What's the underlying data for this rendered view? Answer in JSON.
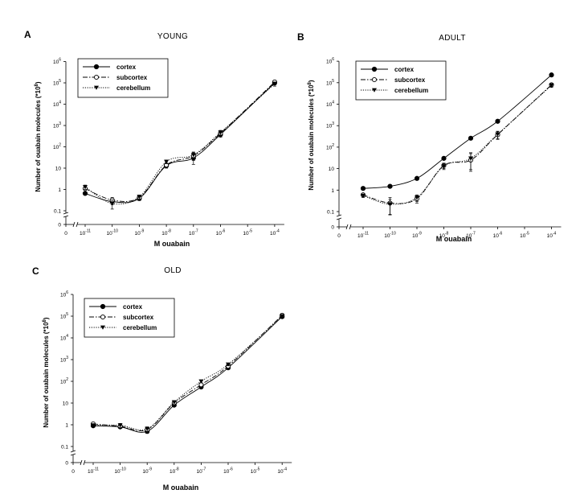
{
  "chart_data": [
    {
      "panel": "A",
      "title": "YOUNG",
      "type": "line",
      "xlabel": "M ouabain",
      "ylabel": "Number of ouabain molecules (*10^8)",
      "x_ticks": [
        "0",
        "10^-11",
        "10^-10",
        "10^-9",
        "10^-8",
        "10^-7",
        "10^-6",
        "10^-5",
        "10^-4"
      ],
      "y_ticks": [
        "0",
        "0.1",
        "1",
        "10",
        "10^2",
        "10^3",
        "10^4",
        "10^5",
        "10^6"
      ],
      "x_scale": "log10",
      "y_scale": "log10",
      "axis_break": true,
      "legend_position": "top-left",
      "series": [
        {
          "name": "cortex",
          "marker": "filled-circle",
          "dash": "solid",
          "x": [
            1e-11,
            1e-10,
            1e-09,
            1e-08,
            1e-07,
            1e-06,
            0.0001
          ],
          "y": [
            0.65,
            0.27,
            0.38,
            13,
            30,
            380,
            100000
          ],
          "err": [
            0.1,
            0.08,
            0.08,
            3,
            15,
            100,
            20000
          ]
        },
        {
          "name": "subcortex",
          "marker": "open-circle",
          "dash": "dash",
          "x": [
            1e-11,
            1e-10,
            1e-09,
            1e-08,
            1e-07,
            1e-06,
            0.0001
          ],
          "y": [
            1.1,
            0.32,
            0.42,
            14,
            38,
            430,
            110000
          ],
          "err": [
            0.2,
            0.1,
            0.1,
            3,
            15,
            120,
            20000
          ]
        },
        {
          "name": "cerebellum",
          "marker": "filled-triangle-down",
          "dash": "dot",
          "x": [
            1e-11,
            1e-10,
            1e-09,
            1e-08,
            1e-07,
            1e-06,
            0.0001
          ],
          "y": [
            1.3,
            0.22,
            0.45,
            20,
            42,
            470,
            90000
          ],
          "err": [
            0.3,
            0.1,
            0.1,
            4,
            15,
            120,
            20000
          ]
        }
      ]
    },
    {
      "panel": "B",
      "title": "ADULT",
      "type": "line",
      "xlabel": "M ouabain",
      "ylabel": "Number of ouabain molecules (*10^8)",
      "x_ticks": [
        "0",
        "10^-11",
        "10^-10",
        "10^-9",
        "10^-8",
        "10^-7",
        "10^-6",
        "10^-5",
        "10^-4"
      ],
      "y_ticks": [
        "0",
        "0.1",
        "1",
        "10",
        "10^2",
        "10^3",
        "10^4",
        "10^5",
        "10^6"
      ],
      "x_scale": "log10",
      "y_scale": "log10",
      "axis_break": true,
      "legend_position": "top-left",
      "series": [
        {
          "name": "cortex",
          "marker": "filled-circle",
          "dash": "solid",
          "x": [
            1e-11,
            1e-10,
            1e-09,
            1e-08,
            1e-07,
            1e-06,
            0.0001
          ],
          "y": [
            1.2,
            1.5,
            3.5,
            30,
            260,
            1600,
            230000
          ],
          "err": [
            0.1,
            0.1,
            0.3,
            3,
            30,
            200,
            20000
          ]
        },
        {
          "name": "subcortex",
          "marker": "open-circle",
          "dash": "dash",
          "x": [
            1e-11,
            1e-10,
            1e-09,
            1e-08,
            1e-07,
            1e-06,
            0.0001
          ],
          "y": [
            0.6,
            0.25,
            0.4,
            14,
            25,
            380,
            80000
          ],
          "err": [
            0.1,
            0.2,
            0.15,
            4,
            25,
            150,
            15000
          ]
        },
        {
          "name": "cerebellum",
          "marker": "filled-triangle-down",
          "dash": "dot",
          "x": [
            1e-11,
            1e-10,
            1e-09,
            1e-08,
            1e-07,
            1e-06,
            0.0001
          ],
          "y": [
            0.55,
            0.22,
            0.45,
            13,
            30,
            400,
            75000
          ],
          "err": [
            0.1,
            0.15,
            0.15,
            4,
            25,
            150,
            15000
          ]
        }
      ]
    },
    {
      "panel": "C",
      "title": "OLD",
      "type": "line",
      "xlabel": "M ouabain",
      "ylabel": "Number of ouabain molecules (*10^8)",
      "x_ticks": [
        "0",
        "10^-11",
        "10^-10",
        "10^-9",
        "10^-8",
        "10^-7",
        "10^-6",
        "10^-5",
        "10^-4"
      ],
      "y_ticks": [
        "0",
        "0.1",
        "1",
        "10",
        "10^2",
        "10^3",
        "10^4",
        "10^5",
        "10^6"
      ],
      "x_scale": "log10",
      "y_scale": "log10",
      "axis_break": true,
      "legend_position": "top-left",
      "series": [
        {
          "name": "cortex",
          "marker": "filled-circle",
          "dash": "solid",
          "x": [
            1e-11,
            1e-10,
            1e-09,
            1e-08,
            1e-07,
            1e-06,
            0.0001
          ],
          "y": [
            0.9,
            0.8,
            0.5,
            8,
            55,
            420,
            95000
          ],
          "err": [
            0.1,
            0.1,
            0.1,
            1,
            8,
            60,
            15000
          ]
        },
        {
          "name": "subcortex",
          "marker": "open-circle",
          "dash": "dash",
          "x": [
            1e-11,
            1e-10,
            1e-09,
            1e-08,
            1e-07,
            1e-06,
            0.0001
          ],
          "y": [
            1.1,
            0.85,
            0.6,
            10,
            70,
            500,
            110000
          ],
          "err": [
            0.15,
            0.15,
            0.1,
            2,
            10,
            80,
            20000
          ]
        },
        {
          "name": "cerebellum",
          "marker": "filled-triangle-down",
          "dash": "dot",
          "x": [
            1e-11,
            1e-10,
            1e-09,
            1e-08,
            1e-07,
            1e-06,
            0.0001
          ],
          "y": [
            0.95,
            0.95,
            0.65,
            11,
            100,
            600,
            100000
          ],
          "err": [
            0.1,
            0.2,
            0.15,
            2,
            15,
            80,
            20000
          ]
        }
      ]
    }
  ]
}
